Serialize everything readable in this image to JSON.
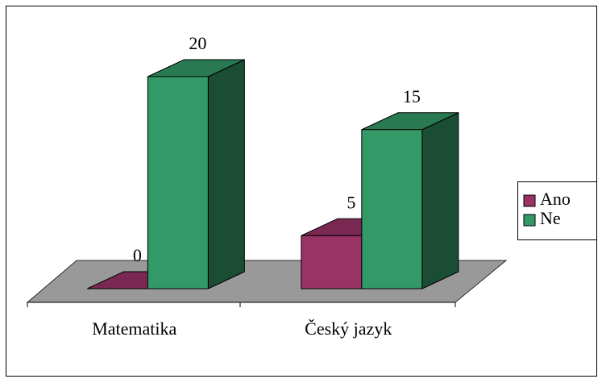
{
  "chart_data": {
    "type": "bar3d",
    "categories": [
      "Matematika",
      "Český jazyk"
    ],
    "series": [
      {
        "name": "Ano",
        "color": "#993366",
        "values": [
          0,
          5
        ]
      },
      {
        "name": "Ne",
        "color": "#339966",
        "values": [
          20,
          15
        ]
      }
    ],
    "legend": "right"
  }
}
